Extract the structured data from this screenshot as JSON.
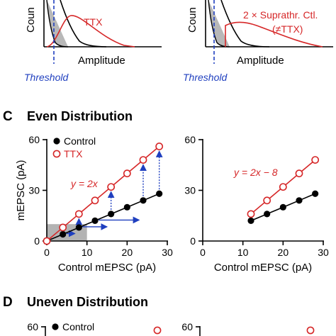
{
  "colors": {
    "control": "#000000",
    "ttx": "#d62728",
    "arrow": "#1f3fbf",
    "shade": "#b3b3b3"
  },
  "top": {
    "left": {
      "xlabel": "Amplitude",
      "ylabel": "Coun",
      "threshold": "Threshold",
      "curve_label": "TTX"
    },
    "right": {
      "xlabel": "Amplitude",
      "ylabel": "Coun",
      "threshold": "Threshold",
      "curve_label_1": "2 × Suprathr. Ctl.",
      "curve_label_2": "(≠TTX)"
    }
  },
  "panel_c": {
    "letter": "C",
    "title": "Even Distribution"
  },
  "panel_d": {
    "letter": "D",
    "title": "Uneven Distribution",
    "legend_control": "Control"
  },
  "chart_data": [
    {
      "type": "scatter",
      "panel": "C-left",
      "xlabel": "Control mEPSC (pA)",
      "ylabel": "mEPSC (pA)",
      "xlim": [
        0,
        30
      ],
      "ylim": [
        0,
        60
      ],
      "xticks": [
        "0",
        "10",
        "20",
        "30"
      ],
      "yticks": [
        "0",
        "30",
        "60"
      ],
      "legend": [
        "Control",
        "TTX"
      ],
      "annotation": "y = 2x",
      "series": [
        {
          "name": "Control",
          "marker": "filled",
          "x": [
            0,
            4,
            8,
            12,
            16,
            20,
            24,
            28
          ],
          "y": [
            0,
            4,
            8,
            12,
            16,
            20,
            24,
            28
          ]
        },
        {
          "name": "TTX",
          "marker": "open",
          "x": [
            0,
            4,
            8,
            12,
            16,
            20,
            24,
            28
          ],
          "y": [
            0,
            8,
            16,
            24,
            32,
            40,
            48,
            56
          ]
        }
      ],
      "shaded_region": {
        "x": [
          0,
          10
        ],
        "y": [
          0,
          10
        ]
      }
    },
    {
      "type": "scatter",
      "panel": "C-right",
      "xlabel": "Control mEPSC (pA)",
      "ylabel": "",
      "xlim": [
        0,
        30
      ],
      "ylim": [
        0,
        60
      ],
      "xticks": [
        "0",
        "10",
        "20",
        "30"
      ],
      "yticks": [
        "0",
        "30",
        "60"
      ],
      "annotation": "y = 2x − 8",
      "series": [
        {
          "name": "Control",
          "marker": "filled",
          "x": [
            12,
            16,
            20,
            24,
            28
          ],
          "y": [
            12,
            16,
            20,
            24,
            28
          ]
        },
        {
          "name": "TTX",
          "marker": "open",
          "x": [
            12,
            16,
            20,
            24,
            28
          ],
          "y": [
            16,
            24,
            32,
            40,
            48
          ]
        }
      ]
    },
    {
      "type": "scatter",
      "panel": "D-left",
      "yticks": [
        "60"
      ]
    },
    {
      "type": "scatter",
      "panel": "D-right",
      "yticks": [
        "60"
      ]
    }
  ]
}
